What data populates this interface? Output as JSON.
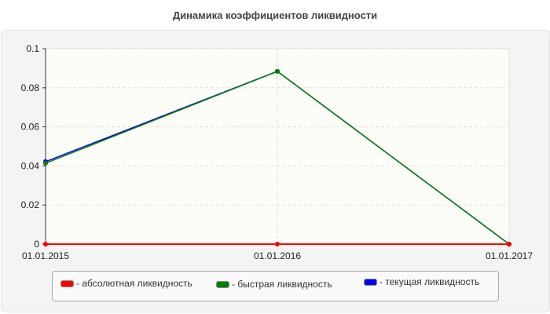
{
  "chart_data": {
    "type": "line",
    "title": "Динамика коэффициентов ликвидности",
    "categories": [
      "01.01.2015",
      "01.01.2016",
      "01.01.2017"
    ],
    "ylim": [
      0,
      0.1
    ],
    "yticks": [
      "0",
      "0.02",
      "0.04",
      "0.06",
      "0.08",
      "0.1"
    ],
    "grid": true,
    "legend_position": "bottom",
    "series": [
      {
        "name": "- абсолютная ликвидность",
        "color": "#ff0000",
        "values": [
          0,
          0,
          0
        ]
      },
      {
        "name": "- быстрая ликвидность",
        "color": "#008000",
        "values": [
          0.0414,
          0.0884,
          0
        ]
      },
      {
        "name": "- текущая ликвидность",
        "color": "#0000ff",
        "values": [
          0.0422,
          0.0884,
          0
        ]
      }
    ]
  }
}
